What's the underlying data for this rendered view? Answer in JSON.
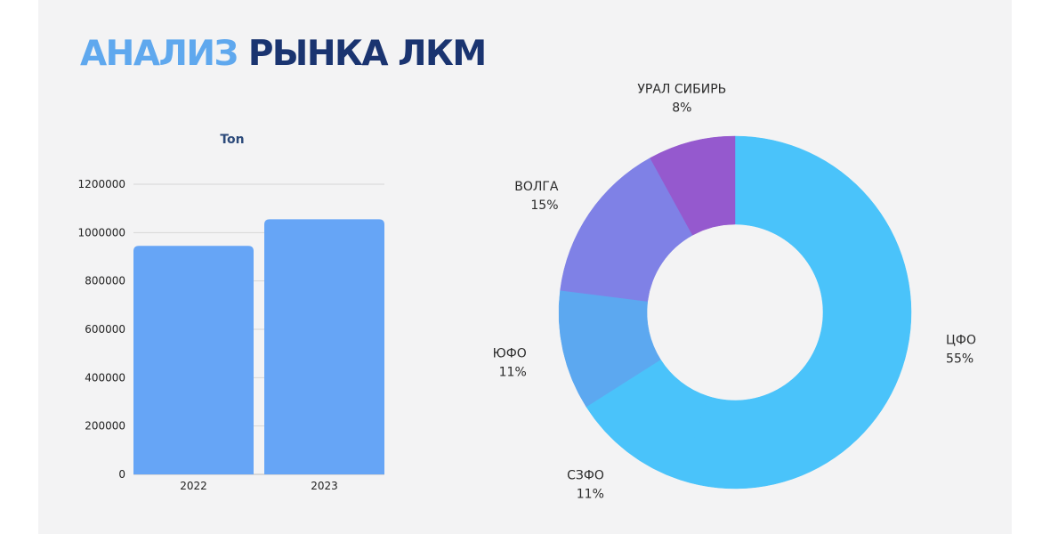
{
  "title": {
    "part1": "АНАЛИЗ",
    "part2": "РЫНКА ЛКМ"
  },
  "chart_data": [
    {
      "type": "bar",
      "title": "Ton",
      "categories": [
        "2022",
        "2023"
      ],
      "values": [
        945000,
        1055000
      ],
      "ylim": [
        0,
        1200000
      ],
      "yticks": [
        "0",
        "200000",
        "400000",
        "600000",
        "800000",
        "1000000",
        "1200000"
      ],
      "grid": true,
      "bar_color": "#66a5f6"
    },
    {
      "type": "pie",
      "donut": true,
      "slices": [
        {
          "label": "ЦФО",
          "pct_label": "55%",
          "value": 55,
          "color": "#4ac3fa"
        },
        {
          "label": "СЗФО",
          "pct_label": "11%",
          "value": 11,
          "color": "#4ac3fa"
        },
        {
          "label": "ЮФО",
          "pct_label": "11%",
          "value": 11,
          "color": "#5ca8f0"
        },
        {
          "label": "ВОЛГА",
          "pct_label": "15%",
          "value": 15,
          "color": "#7f81e6"
        },
        {
          "label": "УРАЛ СИБИРЬ",
          "pct_label": "8%",
          "value": 8,
          "color": "#9559ce"
        }
      ]
    }
  ]
}
